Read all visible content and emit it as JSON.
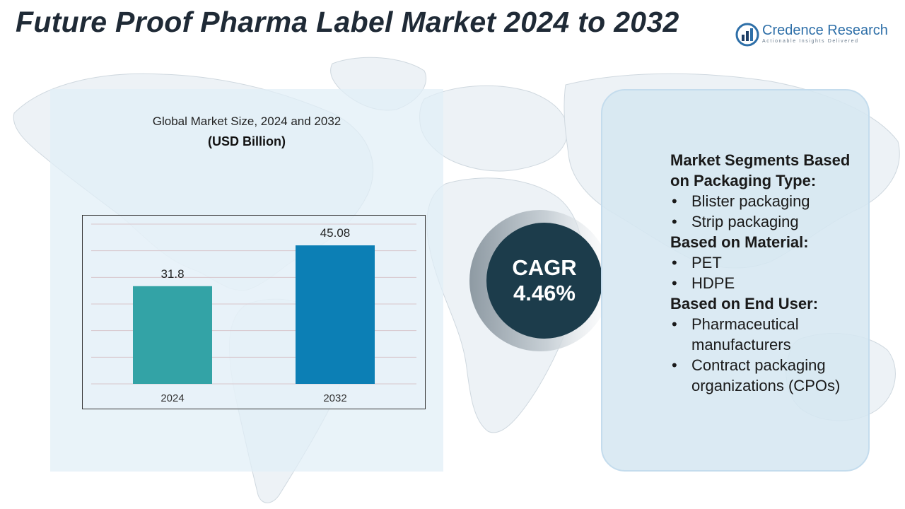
{
  "title": "Future Proof Pharma Label Market 2024 to 2032",
  "logo": {
    "name": "Credence Research",
    "tagline": "Actionable Insights Delivered",
    "icon": "credence-logo-icon"
  },
  "chart_data": {
    "type": "bar",
    "title": "Global Market Size, 2024 and 2032",
    "unit_label": "(USD Billion)",
    "categories": [
      "2024",
      "2032"
    ],
    "values": [
      31.8,
      45.08
    ],
    "data_labels": [
      "31.8",
      "45.08"
    ],
    "colors": [
      "#33a3a6",
      "#0c7fb5"
    ],
    "ylim": [
      0,
      52
    ],
    "grid": true,
    "legend": "none"
  },
  "cagr": {
    "label": "CAGR",
    "value": "4.46%",
    "circle_color": "#1c3c4b"
  },
  "segments": [
    {
      "heading": "Market Segments Based on Packaging Type:",
      "items": [
        "Blister packaging",
        "Strip packaging"
      ]
    },
    {
      "heading": "Based on Material:",
      "items": [
        "PET",
        "HDPE"
      ]
    },
    {
      "heading": "Based on End User:",
      "items": [
        "Pharmaceutical manufacturers",
        "Contract packaging organizations (CPOs)"
      ]
    }
  ],
  "bullet_glyph": "•"
}
